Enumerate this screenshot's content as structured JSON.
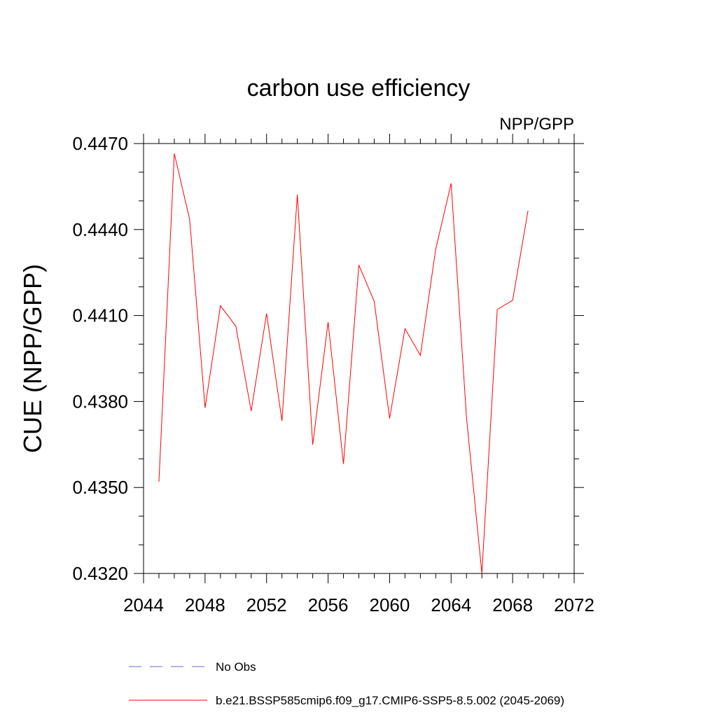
{
  "chart_data": {
    "type": "line",
    "title": "carbon use efficiency",
    "subtitle": "NPP/GPP",
    "xlabel": "",
    "ylabel": "CUE  (NPP/GPP)",
    "xlim": [
      2044,
      2072
    ],
    "ylim": [
      0.432,
      0.447
    ],
    "xticks": [
      2044,
      2048,
      2052,
      2056,
      2060,
      2064,
      2068,
      2072
    ],
    "xtick_labels": [
      "2044",
      "2048",
      "2052",
      "2056",
      "2060",
      "2064",
      "2068",
      "2072"
    ],
    "yticks": [
      0.432,
      0.435,
      0.438,
      0.441,
      0.444,
      0.447
    ],
    "ytick_labels": [
      "0.4320",
      "0.4350",
      "0.4380",
      "0.4410",
      "0.4440",
      "0.4470"
    ],
    "grid": false,
    "legend_position": "bottom",
    "series": [
      {
        "name": "b.e21.BSSP585cmip6.f09_g17.CMIP6-SSP5-8.5.002 (2045-2069)",
        "color": "#ff0000",
        "dash": "solid",
        "x": [
          2045,
          2046,
          2047,
          2048,
          2049,
          2050,
          2051,
          2052,
          2053,
          2054,
          2055,
          2056,
          2057,
          2058,
          2059,
          2060,
          2061,
          2062,
          2063,
          2064,
          2065,
          2066,
          2067,
          2068,
          2069
        ],
        "y": [
          0.4352,
          0.44665,
          0.44435,
          0.43778,
          0.44134,
          0.44063,
          0.43767,
          0.44107,
          0.43732,
          0.44522,
          0.43649,
          0.44077,
          0.43582,
          0.44276,
          0.44149,
          0.43741,
          0.44054,
          0.43961,
          0.44332,
          0.44561,
          0.43744,
          0.432,
          0.44121,
          0.44153,
          0.44466
        ]
      }
    ],
    "legend": [
      {
        "label": "No Obs",
        "color": "#6a6acd",
        "dash": "dashed"
      },
      {
        "label": "b.e21.BSSP585cmip6.f09_g17.CMIP6-SSP5-8.5.002 (2045-2069)",
        "color": "#ff0000",
        "dash": "solid"
      }
    ]
  }
}
